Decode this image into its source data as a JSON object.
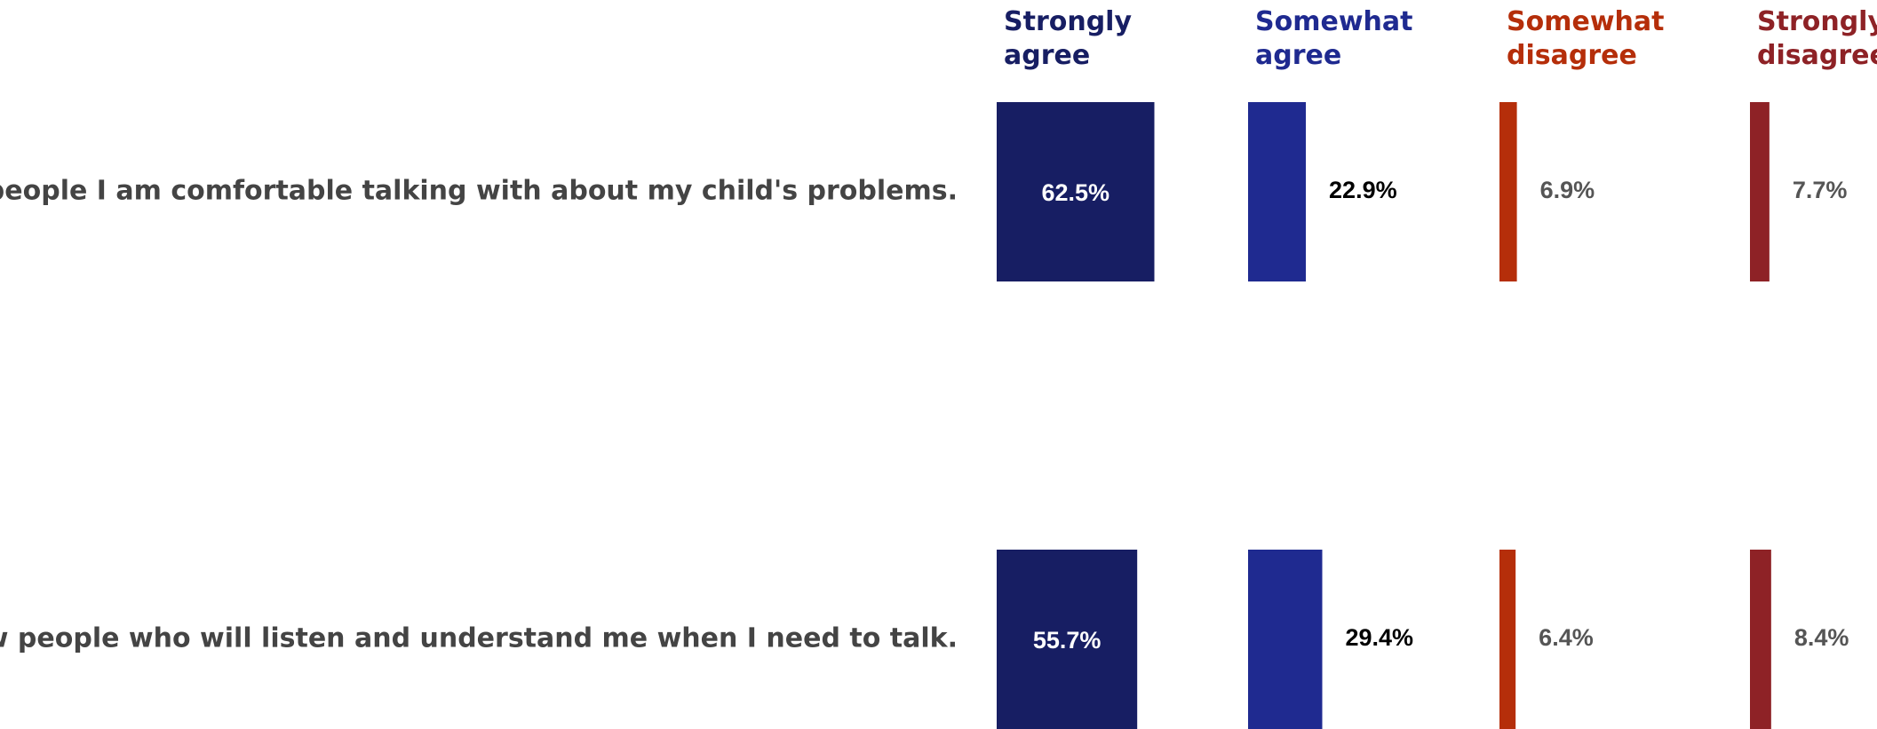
{
  "chart_data": {
    "type": "bar",
    "categories": [
      "I have people I am comfortable talking with about my child's problems.",
      "I know people who will listen and understand me when I need to talk."
    ],
    "series": [
      {
        "name": "Strongly agree",
        "color": "#171e63",
        "values": [
          62.5,
          55.7
        ],
        "value_labels": [
          "62.5%",
          "55.7%"
        ]
      },
      {
        "name": "Somewhat agree",
        "color": "#1f2a90",
        "values": [
          22.9,
          29.4
        ],
        "value_labels": [
          "22.9%",
          "29.4%"
        ]
      },
      {
        "name": "Somewhat disagree",
        "color": "#b52e0a",
        "values": [
          6.9,
          6.4
        ],
        "value_labels": [
          "6.9%",
          "6.4%"
        ]
      },
      {
        "name": "Strongly disagree",
        "color": "#8e2226",
        "values": [
          7.7,
          8.4
        ],
        "value_labels": [
          "7.7%",
          "8.4%"
        ]
      }
    ]
  }
}
